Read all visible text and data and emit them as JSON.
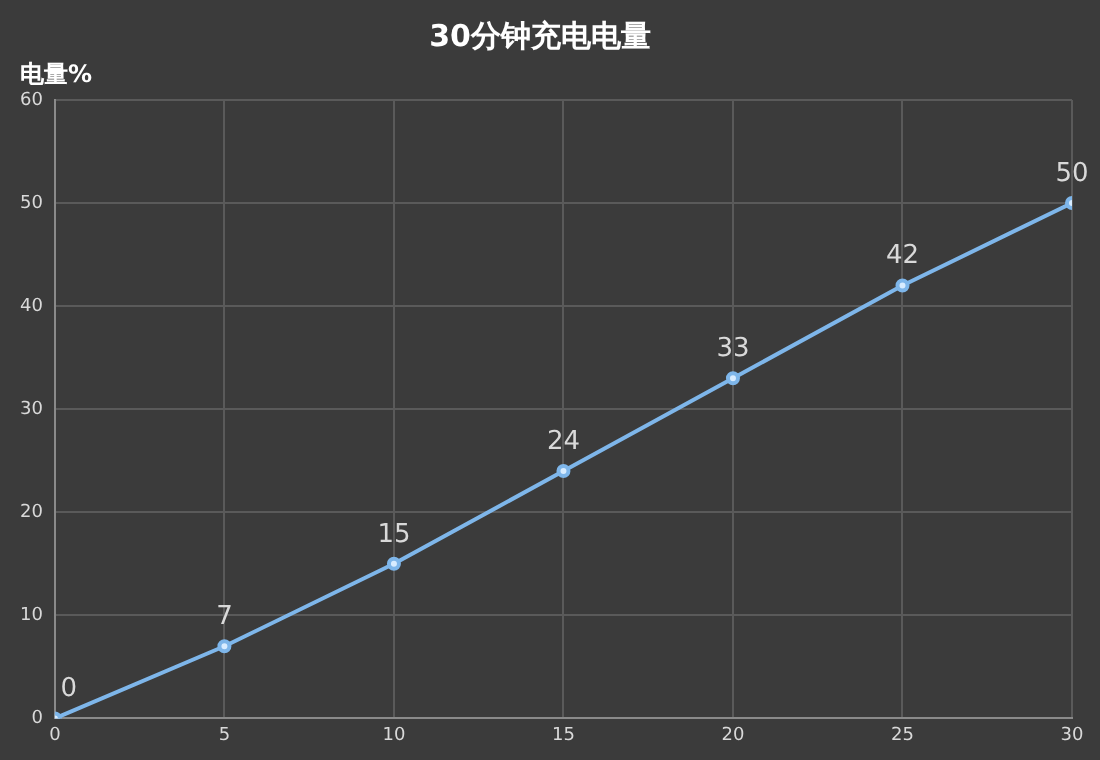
{
  "chart_data": {
    "type": "line",
    "title": "30分钟充电电量",
    "ylabel": "电量%",
    "x": [
      0,
      5,
      10,
      15,
      20,
      25,
      30
    ],
    "series": [
      {
        "color": "#7eb6ea",
        "values": [
          0,
          7,
          15,
          24,
          33,
          42,
          50
        ]
      }
    ],
    "xlim": [
      0,
      30
    ],
    "xticks": [
      0,
      5,
      10,
      15,
      20,
      25,
      30
    ],
    "ylim": [
      0,
      60
    ],
    "yticks": [
      0,
      10,
      20,
      30,
      40,
      50,
      60
    ],
    "grid": true,
    "legend": false,
    "marker": "circle",
    "line_style": "solid",
    "data_labels": true
  }
}
